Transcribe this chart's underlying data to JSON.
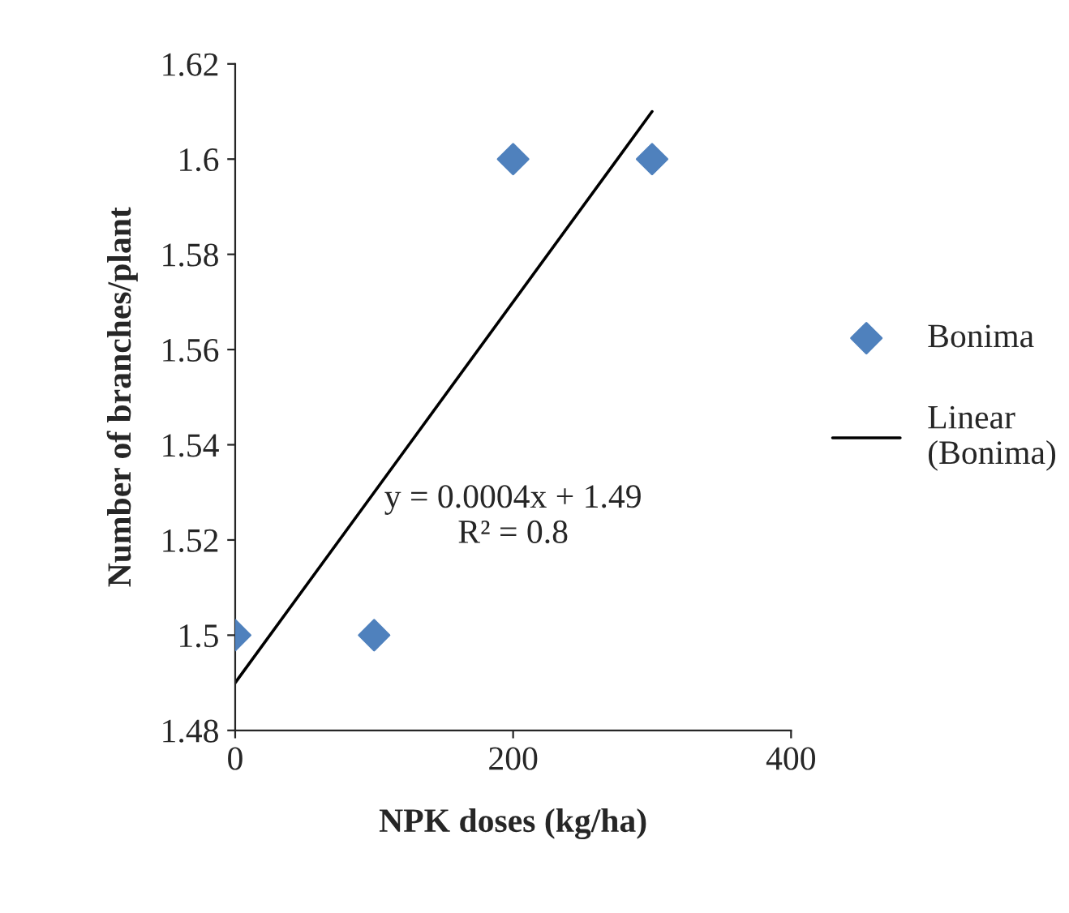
{
  "chart_data": {
    "type": "scatter",
    "xlabel": "NPK doses (kg/ha)",
    "ylabel": "Number of branches/plant",
    "series": [
      {
        "name": "Bonima",
        "color": "#4f81bd",
        "marker": "diamond",
        "x": [
          0,
          100,
          200,
          300
        ],
        "values": [
          1.5,
          1.5,
          1.6,
          1.6
        ]
      },
      {
        "name": "Linear (Bonima)",
        "type": "line",
        "color": "#000000",
        "marker": "none",
        "x": [
          0,
          300
        ],
        "values": [
          1.49,
          1.61
        ]
      }
    ],
    "annotations": [
      "y = 0.0004x + 1.49\nR² = 0.8"
    ],
    "xlim": [
      0,
      400
    ],
    "xticks": [
      0,
      200,
      400
    ],
    "ylim": [
      1.48,
      1.62
    ],
    "yticks": [
      1.48,
      1.5,
      1.52,
      1.54,
      1.56,
      1.58,
      1.6,
      1.62
    ],
    "grid": false,
    "legend": "right"
  }
}
